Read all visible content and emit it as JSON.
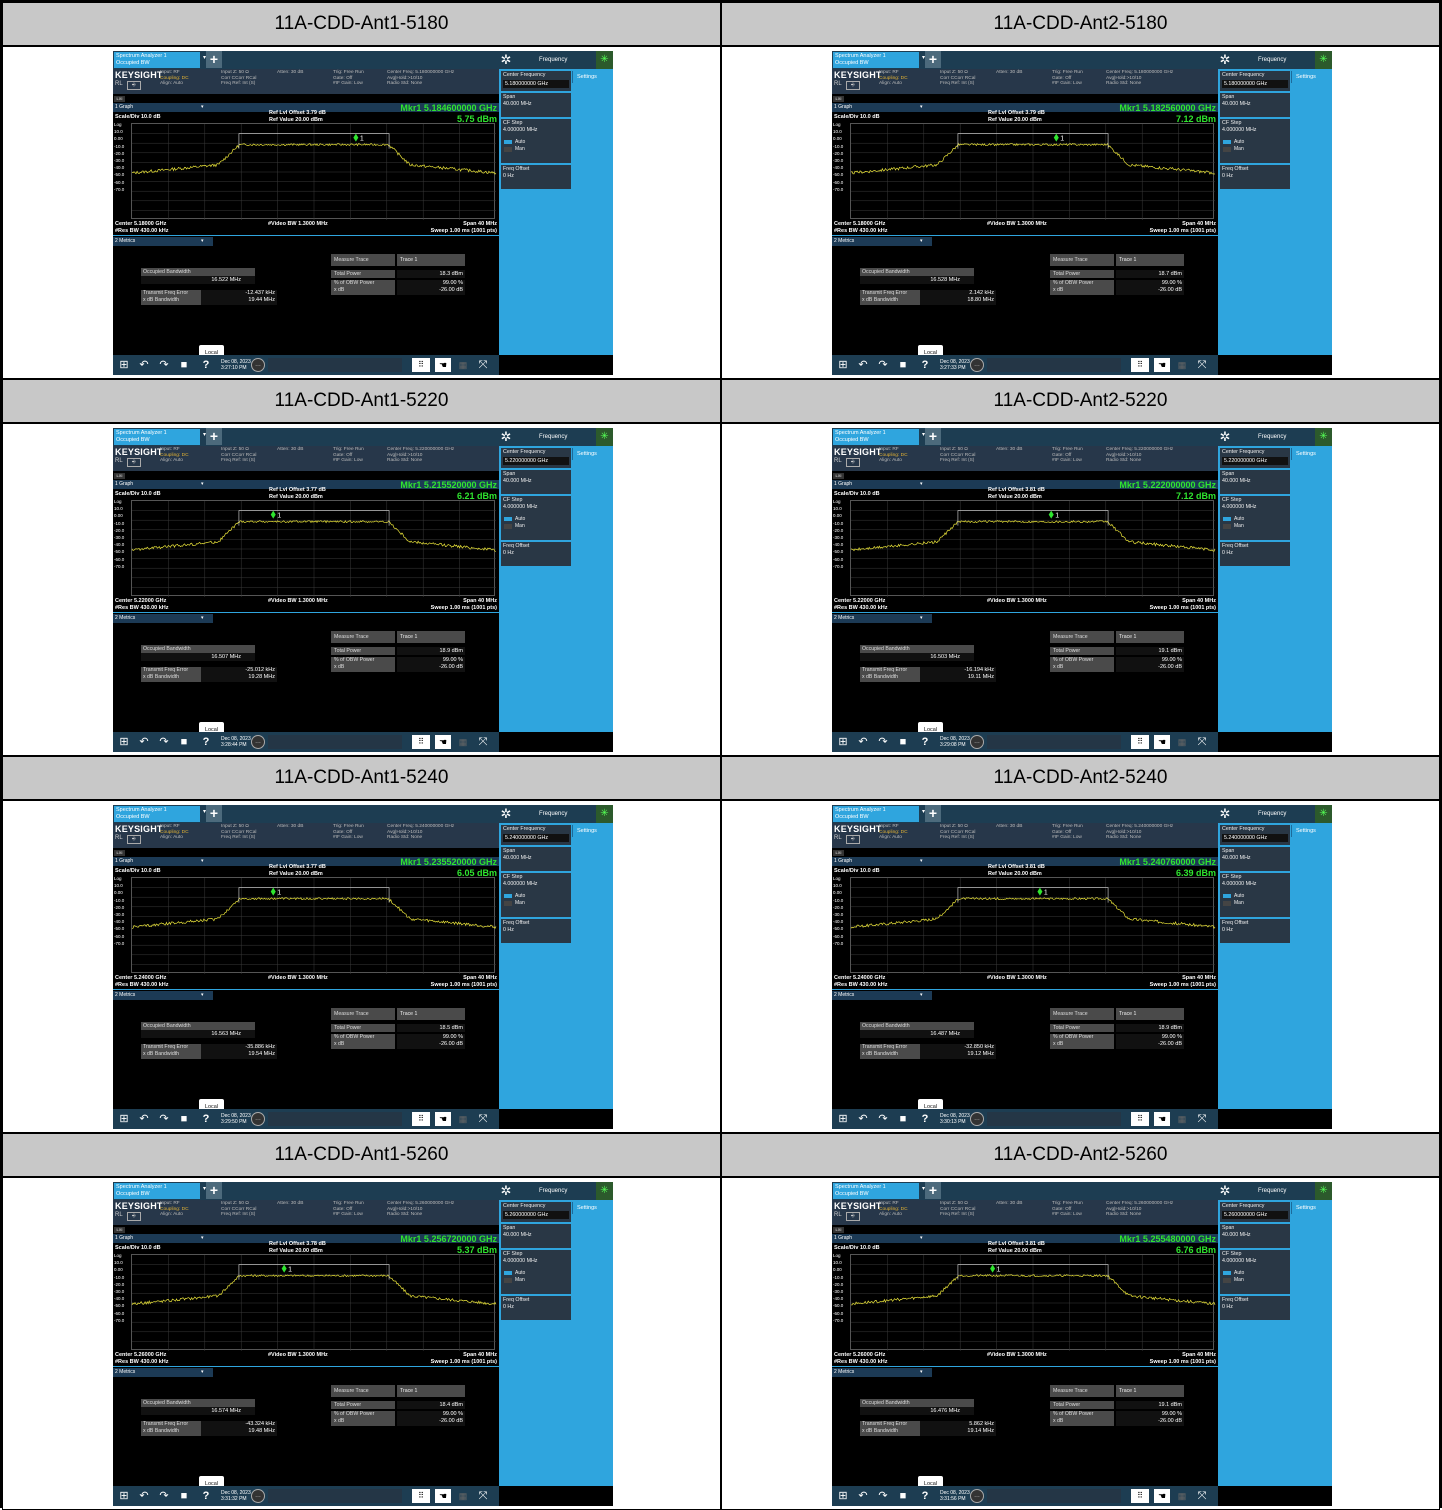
{
  "common": {
    "tab_line1": "Spectrum Analyzer 1",
    "tab_line2": "Occupied BW",
    "plus": "+",
    "freq_menu": "Frequency",
    "logo": "KEYSIGHT",
    "rl": "RL",
    "input_col1": "Input: RF\nCoupling: DC\nAlign: Auto",
    "input_col2": "Input Z: 50 Ω\nCorr CCorr RCal\nFreq Ref: Int (S)",
    "input_col3": "Atten: 30 dB",
    "input_col4": "Trig: Free Run\nGate: Off\n#IF Gain: Low",
    "lxi": "LXI",
    "graph_label": "1 Graph",
    "scale": "Scale/Div 10.0 dB",
    "ref_value": "Ref Value 20.00 dBm",
    "log": "Log",
    "y_ticks": [
      "10.0",
      "0.00",
      "-10.0",
      "-20.0",
      "-30.0",
      "-40.0",
      "-50.0",
      "-60.0",
      "-70.0"
    ],
    "vbw": "#Video BW 1.3000 MHz",
    "span_line1": "Span 40 MHz",
    "span_line2": "Sweep 1.00 ms (1001 pts)",
    "rbw": "#Res BW 430.00 kHz",
    "metrics_label": "2 Metrics",
    "obw_label": "Occupied Bandwidth",
    "tfe_label": "Transmit Freq Error\nx dB Bandwidth",
    "measure_trace": "Measure Trace",
    "trace": "Trace 1",
    "total_power_label": "Total Power",
    "obw_power_label": "% of OBW Power\nx dB",
    "obw_power_val": "99.00 %\n-26.00 dB",
    "side_center": "Center Frequency",
    "side_settings": "Settings",
    "side_span": "Span",
    "side_span_val": "40.000 MHz",
    "side_cfstep": "CF Step",
    "side_cfstep_val": "4.000000 MHz",
    "side_auto": "Auto",
    "side_man": "Man",
    "side_freqoff": "Freq Offset",
    "side_freqoff_val": "0 Hz",
    "local": "Local",
    "date": "Dec 08, 2023"
  },
  "panels": [
    {
      "title": "11A-CDD-Ant1-5180",
      "center_ghz": "5.180000000 GHz",
      "trig_info": "Center Freq: 5.180000000 GHz\nAvg|Hold:>10/10\nRadio Std: None",
      "ref_offset": "Ref Lvl Offset 3.79 dB",
      "mkr": "Mkr1  5.184600000 GHz",
      "mkr_val": "5.75 dBm",
      "center": "Center 5.18000 GHz",
      "obw": "16.522 MHz",
      "tfe": "-12.437 kHz\n19.44 MHz",
      "total_power": "18.3 dBm",
      "time": "3:27:10 PM",
      "mkr_x": 0.615
    },
    {
      "title": "11A-CDD-Ant2-5180",
      "center_ghz": "5.180000000 GHz",
      "trig_info": "Center Freq: 5.180000000 GHz\nAvg|Hold:>10/10\nRadio Std: None",
      "ref_offset": "Ref Lvl Offset 3.79 dB",
      "mkr": "Mkr1  5.182560000 GHz",
      "mkr_val": "7.12 dBm",
      "center": "Center 5.18000 GHz",
      "obw": "16.528 MHz",
      "tfe": "2.142 kHz\n18.80 MHz",
      "total_power": "18.7 dBm",
      "time": "3:27:33 PM",
      "mkr_x": 0.564
    },
    {
      "title": "11A-CDD-Ant1-5220",
      "center_ghz": "5.220000000 GHz",
      "trig_info": "Center Freq: 5.220000000 GHz\nAvg|Hold:>10/10\nRadio Std: None",
      "ref_offset": "Ref Lvl Offset 3.77 dB",
      "mkr": "Mkr1  5.215520000 GHz",
      "mkr_val": "6.21 dBm",
      "center": "Center 5.22000 GHz",
      "obw": "16.507 MHz",
      "tfe": "-25.012 kHz\n19.28 MHz",
      "total_power": "18.9 dBm",
      "time": "3:28:44 PM",
      "mkr_x": 0.388
    },
    {
      "title": "11A-CDD-Ant2-5220",
      "center_ghz": "5.220000000 GHz",
      "trig_info": "Center Freq: 5.220000000 GHz\nAvg|Hold:>10/10\nRadio Std: None",
      "ref_offset": "Ref Lvl Offset 3.81 dB",
      "mkr": "Mkr1  5.222000000 GHz",
      "mkr_val": "7.12 dBm",
      "center": "Center 5.22000 GHz",
      "obw": "16.503 MHz",
      "tfe": "-16.194 kHz\n19.11 MHz",
      "total_power": "19.1 dBm",
      "time": "3:29:08 PM",
      "mkr_x": 0.55
    },
    {
      "title": "11A-CDD-Ant1-5240",
      "center_ghz": "5.240000000 GHz",
      "trig_info": "Center Freq: 5.240000000 GHz\nAvg|Hold:>10/10\nRadio Std: None",
      "ref_offset": "Ref Lvl Offset 3.77 dB",
      "mkr": "Mkr1  5.235520000 GHz",
      "mkr_val": "6.05 dBm",
      "center": "Center 5.24000 GHz",
      "obw": "16.563 MHz",
      "tfe": "-35.886 kHz\n19.54 MHz",
      "total_power": "18.5 dBm",
      "time": "3:29:50 PM",
      "mkr_x": 0.388
    },
    {
      "title": "11A-CDD-Ant2-5240",
      "center_ghz": "5.240000000 GHz",
      "trig_info": "Center Freq: 5.240000000 GHz\nAvg|Hold:>10/10\nRadio Std: None",
      "ref_offset": "Ref Lvl Offset 3.81 dB",
      "mkr": "Mkr1  5.240760000 GHz",
      "mkr_val": "6.39 dBm",
      "center": "Center 5.24000 GHz",
      "obw": "16.487 MHz",
      "tfe": "-32.850 kHz\n19.12 MHz",
      "total_power": "18.9 dBm",
      "time": "3:30:13 PM",
      "mkr_x": 0.519
    },
    {
      "title": "11A-CDD-Ant1-5260",
      "center_ghz": "5.260000000 GHz",
      "trig_info": "Center Freq: 5.260000000 GHz\nAvg|Hold:>10/10\nRadio Std: None",
      "ref_offset": "Ref Lvl Offset 3.78 dB",
      "mkr": "Mkr1  5.256720000 GHz",
      "mkr_val": "5.37 dBm",
      "center": "Center 5.26000 GHz",
      "obw": "16.574 MHz",
      "tfe": "-43.324 kHz\n19.48 MHz",
      "total_power": "18.4 dBm",
      "time": "3:31:32 PM",
      "mkr_x": 0.418
    },
    {
      "title": "11A-CDD-Ant2-5260",
      "center_ghz": "5.260000000 GHz",
      "trig_info": "Center Freq: 5.260000000 GHz\nAvg|Hold:>10/10\nRadio Std: None",
      "ref_offset": "Ref Lvl Offset 3.81 dB",
      "mkr": "Mkr1  5.255480000 GHz",
      "mkr_val": "6.76 dBm",
      "center": "Center 5.26000 GHz",
      "obw": "16.476 MHz",
      "tfe": "5.862 kHz\n19.14 MHz",
      "total_power": "19.1 dBm",
      "time": "3:31:56 PM",
      "mkr_x": 0.389
    }
  ],
  "colors": {
    "accent": "#2fa5de",
    "marker": "#2fe52f",
    "trace": "#e8e23a",
    "coupling": "#e4b333"
  }
}
